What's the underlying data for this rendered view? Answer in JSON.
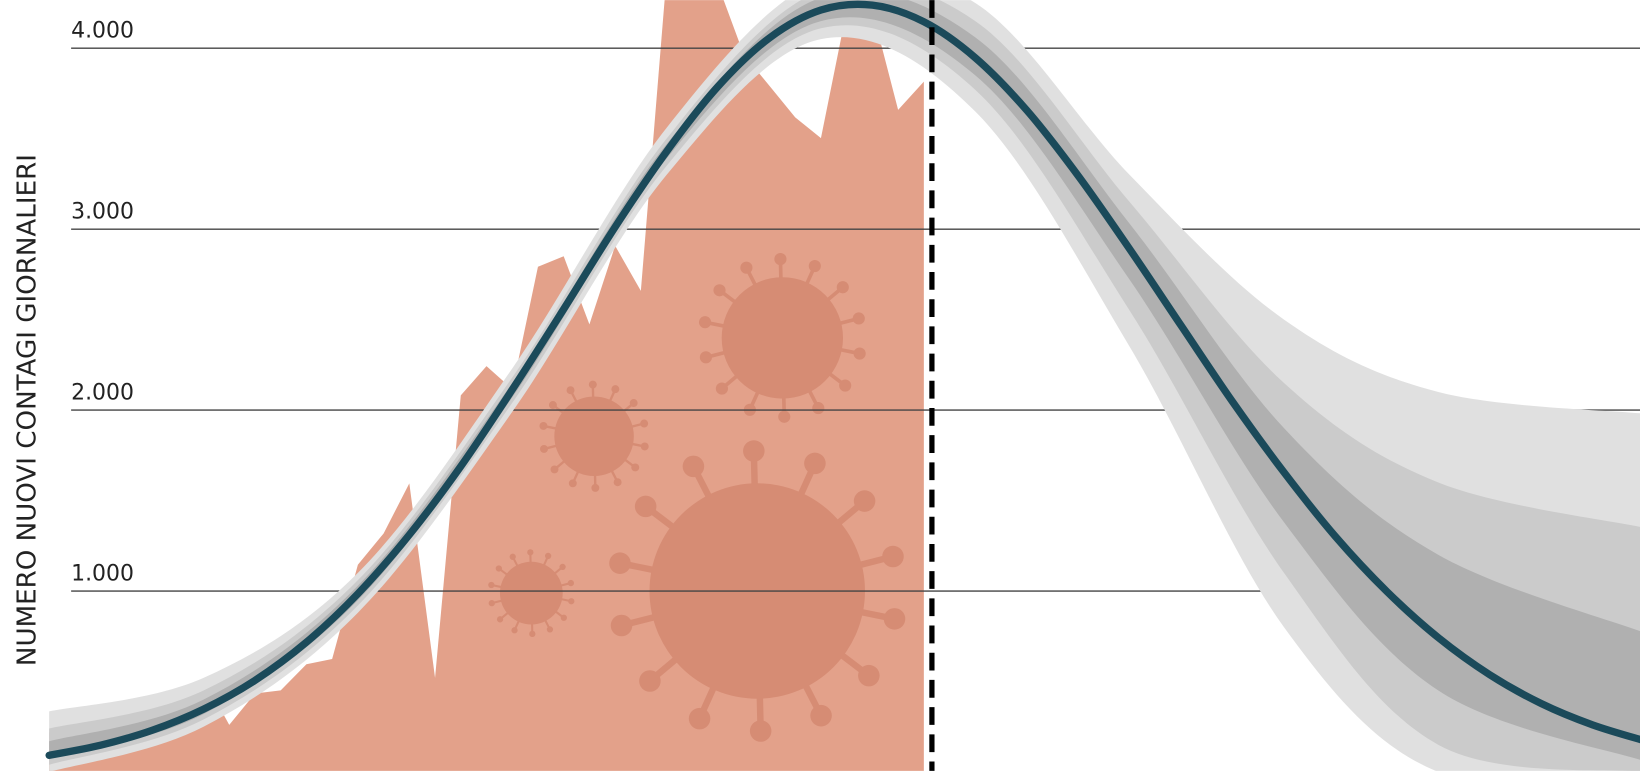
{
  "chart_data": {
    "type": "area",
    "y_label": "NUMERO NUOVI CONTAGI GIORNALIERI",
    "ylim": [
      0,
      4266
    ],
    "yticks": [
      {
        "value": 1000,
        "label": "1.000"
      },
      {
        "value": 2000,
        "label": "2.000"
      },
      {
        "value": 3000,
        "label": "3.000"
      },
      {
        "value": 4000,
        "label": "4.000"
      }
    ],
    "xlim": [
      0,
      62
    ],
    "grid": true,
    "series": [
      {
        "type": "area",
        "color": "#e3a18a",
        "x": [
          0,
          1,
          2,
          3,
          4,
          5,
          6,
          7,
          8,
          9,
          10,
          11,
          12,
          13,
          14,
          15,
          16,
          17,
          18,
          19,
          20,
          21,
          22,
          23,
          24,
          25,
          26,
          27,
          28,
          29,
          30,
          31,
          32,
          33,
          34
        ],
        "values": [
          220,
          104,
          116,
          173,
          231,
          301,
          520,
          260,
          434,
          451,
          595,
          624,
          1145,
          1318,
          1595,
          520,
          2081,
          2243,
          2116,
          2792,
          2850,
          2474,
          2908,
          2659,
          4400,
          4450,
          4350,
          3965,
          3792,
          3618,
          3503,
          4208,
          4208,
          3659,
          3815
        ]
      },
      {
        "type": "line",
        "color": "#1b4a5a",
        "x": [
          0,
          2,
          4,
          6,
          8,
          10,
          12,
          14,
          16,
          18,
          20,
          22,
          24,
          26,
          28,
          30,
          32,
          34,
          36,
          38,
          40,
          42,
          44,
          46,
          48,
          50,
          52,
          54,
          56,
          58,
          60,
          62
        ],
        "values": [
          92,
          148,
          230,
          347,
          506,
          717,
          985,
          1311,
          1689,
          2113,
          2558,
          3012,
          3429,
          3789,
          4057,
          4211,
          4238,
          4146,
          3947,
          3657,
          3295,
          2890,
          2467,
          2046,
          1656,
          1301,
          997,
          742,
          537,
          378,
          260,
          173
        ]
      }
    ],
    "bands": [
      {
        "color": "#e0e0e0",
        "x": [
          0,
          6,
          12,
          18,
          24,
          30,
          36,
          42,
          48,
          54,
          62
        ],
        "upper": [
          335,
          520,
          1100,
          2230,
          3560,
          4380,
          4250,
          3300,
          2500,
          2100,
          1980
        ],
        "lower": [
          0,
          250,
          880,
          1990,
          3300,
          4050,
          3650,
          2350,
          800,
          0,
          0
        ]
      },
      {
        "color": "#cbcbcb",
        "x": [
          0,
          6,
          12,
          18,
          24,
          30,
          36,
          42,
          48,
          54,
          62
        ],
        "upper": [
          240,
          450,
          1060,
          2180,
          3500,
          4320,
          4150,
          3150,
          2150,
          1600,
          1350
        ],
        "lower": [
          40,
          290,
          920,
          2040,
          3350,
          4110,
          3770,
          2550,
          1100,
          150,
          0
        ]
      },
      {
        "color": "#b0b0b0",
        "x": [
          0,
          6,
          12,
          18,
          24,
          30,
          36,
          42,
          48,
          54,
          62
        ],
        "upper": [
          170,
          400,
          1030,
          2150,
          3470,
          4280,
          4060,
          3030,
          1900,
          1200,
          770
        ],
        "lower": [
          70,
          320,
          950,
          2070,
          3390,
          4150,
          3850,
          2720,
          1380,
          450,
          60
        ]
      }
    ]
  }
}
